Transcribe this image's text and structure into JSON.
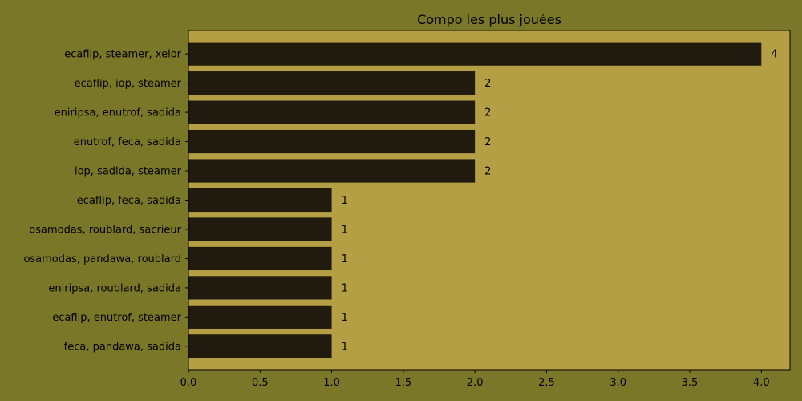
{
  "chart_data": {
    "type": "bar",
    "orientation": "horizontal",
    "title": "Compo les plus jouées",
    "xlabel": "",
    "ylabel": "",
    "categories": [
      "ecaflip, steamer, xelor",
      "ecaflip, iop, steamer",
      "eniripsa, enutrof, sadida",
      "enutrof, feca, sadida",
      "iop, sadida, steamer",
      "ecaflip, feca, sadida",
      "osamodas, roublard, sacrieur",
      "osamodas, pandawa, roublard",
      "eniripsa, roublard, sadida",
      "ecaflip, enutrof, steamer",
      "feca, pandawa, sadida"
    ],
    "values": [
      4,
      2,
      2,
      2,
      2,
      1,
      1,
      1,
      1,
      1,
      1
    ],
    "data_labels": [
      "4",
      "2",
      "2",
      "2",
      "2",
      "1",
      "1",
      "1",
      "1",
      "1",
      "1"
    ],
    "xlim": [
      0,
      4.2
    ],
    "xticks": [
      0,
      0.5,
      1,
      1.5,
      2,
      2.5,
      3,
      3.5,
      4
    ],
    "xtick_labels": [
      "0.0",
      "0.5",
      "1.0",
      "1.5",
      "2.0",
      "2.5",
      "3.0",
      "3.5",
      "4.0"
    ],
    "grid": false,
    "legend": "none",
    "colors": {
      "figure_background": "#7b7728",
      "plot_background": "#b59f44",
      "bar": "#211a0e",
      "text": "#000000"
    }
  }
}
